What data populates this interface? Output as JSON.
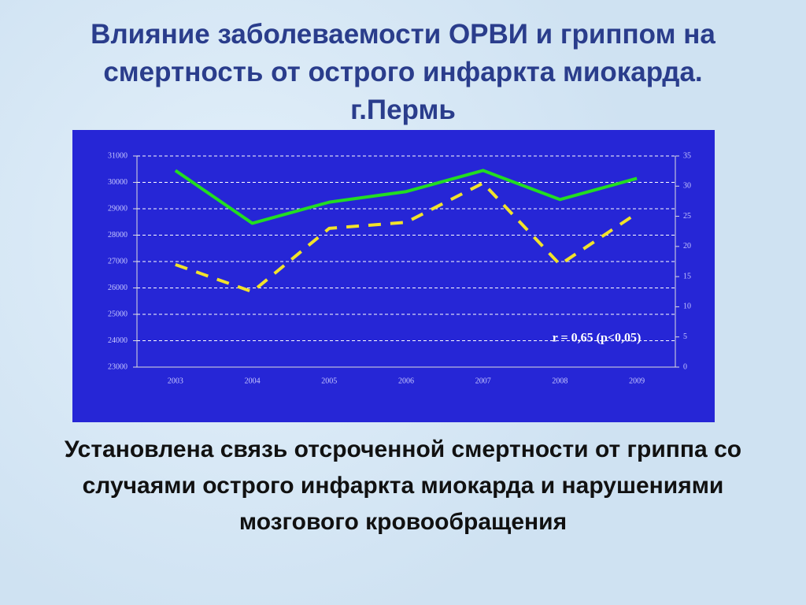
{
  "title": "Влияние заболеваемости ОРВИ и гриппом на смертность от острого инфаркта миокарда. г.Пермь",
  "conclusion": "Установлена связь отсроченной смертности от гриппа со случаями острого инфаркта миокарда и нарушениями мозгового кровообращения",
  "chart_data": {
    "type": "line",
    "categories": [
      "2003",
      "2004",
      "2005",
      "2006",
      "2007",
      "2008",
      "2009"
    ],
    "series": [
      {
        "color": "#22dd22",
        "values": [
          30450,
          28450,
          29250,
          29650,
          30450,
          29350,
          30150
        ],
        "dashed": false
      },
      {
        "color": "#f2e22a",
        "values": [
          17,
          12.5,
          23,
          24,
          30.5,
          17,
          25.5
        ],
        "axis": "y2",
        "dashed": true
      }
    ],
    "ylim": [
      23000,
      31000
    ],
    "yticks": [
      23000,
      24000,
      25000,
      26000,
      27000,
      28000,
      29000,
      30000,
      31000
    ],
    "y2lim": [
      0,
      35
    ],
    "y2ticks": [
      0,
      5,
      10,
      15,
      20,
      25,
      30,
      35
    ],
    "grid": true,
    "annotation": "r = 0,65 (p<0,05)"
  }
}
